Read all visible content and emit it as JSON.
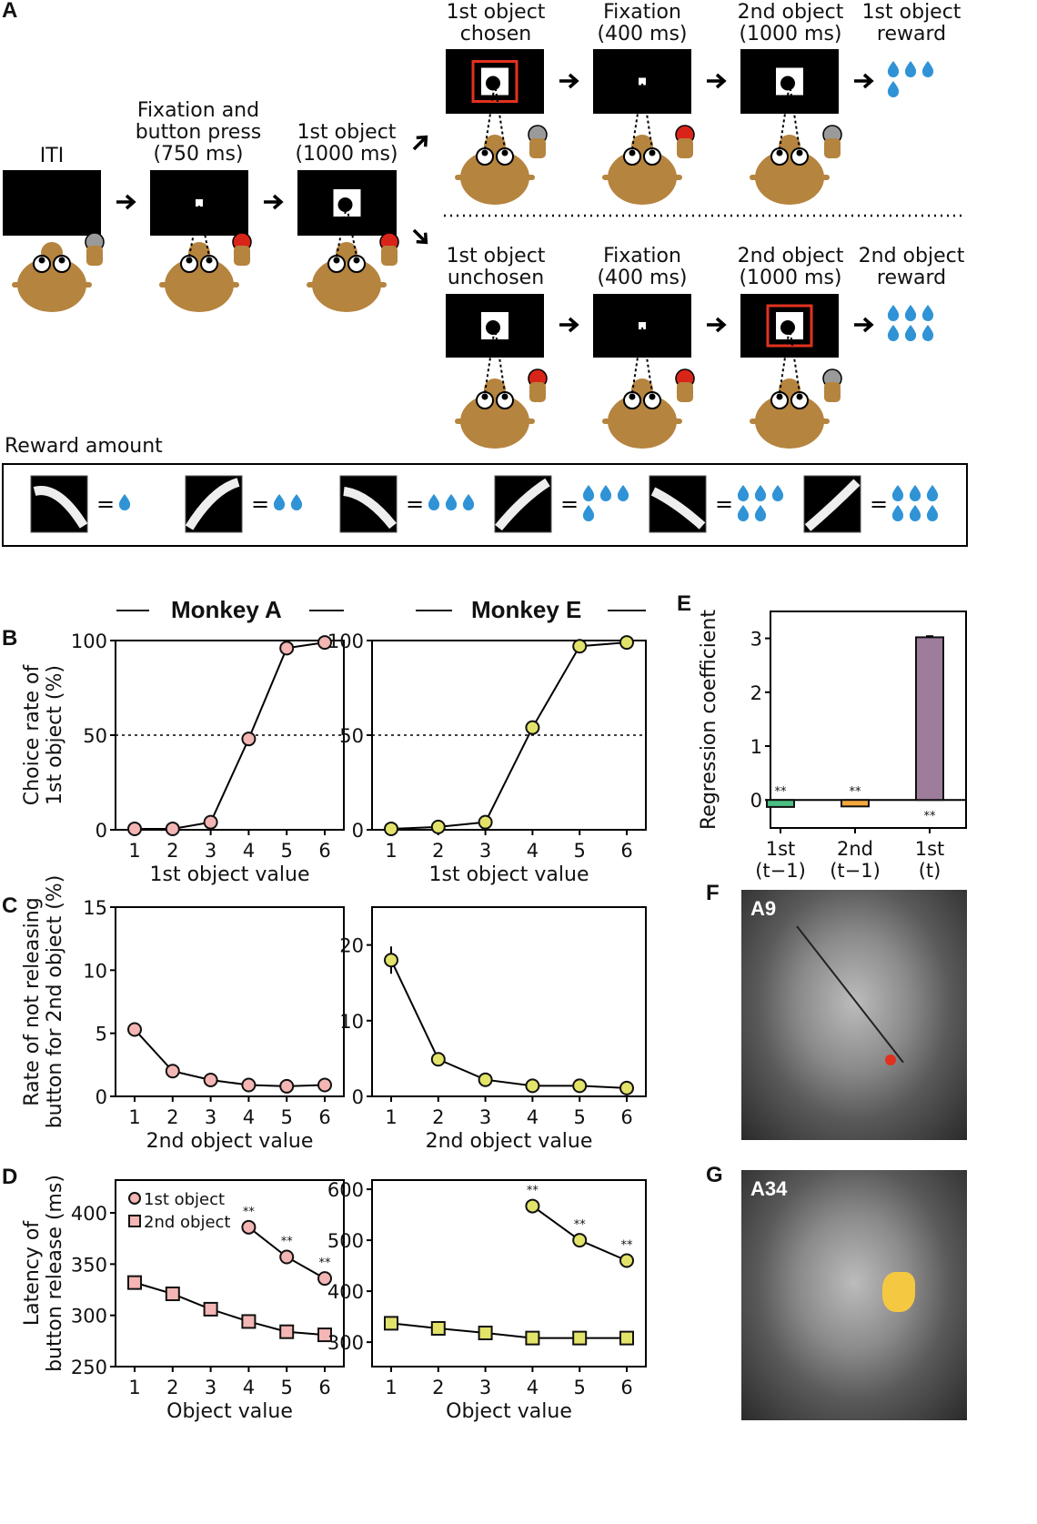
{
  "panel_labels": {
    "a": "A",
    "b": "B",
    "c": "C",
    "d": "D",
    "e": "E",
    "f": "F",
    "g": "G"
  },
  "panel_a": {
    "iti": "ITI",
    "fixation_press": [
      "Fixation and",
      "button press",
      "(750 ms)"
    ],
    "first_object": [
      "1st object",
      "(1000 ms)"
    ],
    "top_row": [
      [
        "1st object",
        "chosen"
      ],
      [
        "Fixation",
        "(400 ms)"
      ],
      [
        "2nd object",
        "(1000 ms)"
      ],
      [
        "1st object",
        "reward"
      ]
    ],
    "bottom_row": [
      [
        "1st object",
        "unchosen"
      ],
      [
        "Fixation",
        "(400 ms)"
      ],
      [
        "2nd object",
        "(1000 ms)"
      ],
      [
        "2nd object",
        "reward"
      ]
    ],
    "top_reward_drops": 4,
    "bottom_reward_drops": 6,
    "reward_title": "Reward amount",
    "reward_items": [
      {
        "drops": 1,
        "equals": "="
      },
      {
        "drops": 2,
        "equals": "="
      },
      {
        "drops": 3,
        "equals": "="
      },
      {
        "drops": 4,
        "equals": "="
      },
      {
        "drops": 5,
        "equals": "="
      },
      {
        "drops": 6,
        "equals": "="
      }
    ],
    "colors": {
      "monkey": "#b5843f",
      "drop": "#2f93d6",
      "highlight": "#e2321f",
      "button_pressed": "#d9241a",
      "button_idle": "#9a9a9a"
    }
  },
  "monkey_headers": [
    "Monkey A",
    "Monkey E"
  ],
  "brain": {
    "f_label": "A9",
    "g_label": "A34",
    "marker_color": "#e0301e",
    "region_color": "#f5c842"
  },
  "chart_data": [
    {
      "id": "B-monkeyA",
      "type": "line",
      "x": [
        1,
        2,
        3,
        4,
        5,
        6
      ],
      "xlabel": "1st object value",
      "ylabel": [
        "Choice rate of",
        "1st object (%)"
      ],
      "ylim": [
        0,
        100
      ],
      "yticks": [
        0,
        50,
        100
      ],
      "reference_line": 50,
      "series": [
        {
          "marker": "circle",
          "color": "#f4b6b4",
          "values": [
            0.5,
            0.5,
            4,
            48,
            96,
            99
          ]
        }
      ]
    },
    {
      "id": "B-monkeyE",
      "type": "line",
      "x": [
        1,
        2,
        3,
        4,
        5,
        6
      ],
      "xlabel": "1st object value",
      "ylim": [
        0,
        100
      ],
      "yticks": [
        0,
        50,
        100
      ],
      "reference_line": 50,
      "series": [
        {
          "marker": "circle",
          "color": "#e3e36a",
          "values": [
            0.5,
            1.5,
            4,
            54,
            97,
            99
          ]
        }
      ]
    },
    {
      "id": "C-monkeyA",
      "type": "line",
      "x": [
        1,
        2,
        3,
        4,
        5,
        6
      ],
      "xlabel": "2nd object value",
      "ylabel": [
        "Rate of not releasing",
        "button for 2nd object (%)"
      ],
      "ylim": [
        0,
        15
      ],
      "yticks": [
        0,
        5,
        10,
        15
      ],
      "series": [
        {
          "marker": "circle",
          "color": "#f4b6b4",
          "values": [
            5.3,
            2,
            1.3,
            0.9,
            0.8,
            0.9
          ]
        }
      ]
    },
    {
      "id": "C-monkeyE",
      "type": "line",
      "x": [
        1,
        2,
        3,
        4,
        5,
        6
      ],
      "xlabel": "2nd object value",
      "ylim": [
        0,
        25
      ],
      "yticks": [
        0,
        10,
        20
      ],
      "series": [
        {
          "marker": "circle",
          "color": "#e3e36a",
          "values": [
            18,
            4.9,
            2.2,
            1.4,
            1.4,
            1.1
          ],
          "errors": [
            1.8,
            0,
            0,
            0,
            0,
            0
          ]
        }
      ]
    },
    {
      "id": "D-monkeyA",
      "type": "line",
      "x": [
        1,
        2,
        3,
        4,
        5,
        6
      ],
      "xlabel": "Object value",
      "ylabel": [
        "Latency of",
        "button release (ms)"
      ],
      "ylim": [
        250,
        432
      ],
      "yticks": [
        250,
        300,
        350,
        400
      ],
      "legend": "top-left",
      "series": [
        {
          "name": "1st object",
          "marker": "circle",
          "color": "#f4b6b4",
          "x": [
            4,
            5,
            6
          ],
          "values": [
            386,
            357,
            336
          ],
          "significance": [
            "**",
            "**",
            "**"
          ]
        },
        {
          "name": "2nd object",
          "marker": "square",
          "color": "#f4b6b4",
          "values": [
            332,
            321,
            306,
            294,
            284,
            281
          ]
        }
      ]
    },
    {
      "id": "D-monkeyE",
      "type": "line",
      "x": [
        1,
        2,
        3,
        4,
        5,
        6
      ],
      "xlabel": "Object value",
      "ylim": [
        252,
        618
      ],
      "yticks": [
        300,
        400,
        500,
        600
      ],
      "series": [
        {
          "marker": "circle",
          "color": "#e3e36a",
          "x": [
            4,
            5,
            6
          ],
          "values": [
            567,
            500,
            460
          ],
          "significance": [
            "**",
            "**",
            "**"
          ]
        },
        {
          "marker": "square",
          "color": "#e3e36a",
          "values": [
            337,
            327,
            318,
            308,
            308,
            308
          ]
        }
      ]
    },
    {
      "id": "E",
      "type": "bar",
      "categories": [
        [
          "1st",
          "(t−1)"
        ],
        [
          "2nd",
          "(t−1)"
        ],
        [
          "1st",
          "(t)"
        ]
      ],
      "ylabel": "Regression coefficient",
      "ylim": [
        -0.52,
        3.5
      ],
      "yticks": [
        0,
        1,
        2,
        3
      ],
      "values": [
        -0.13,
        -0.12,
        3.02
      ],
      "colors": [
        "#4bbf83",
        "#f5a83c",
        "#9e7c9c"
      ],
      "significance": [
        "**",
        "**",
        "**"
      ]
    }
  ]
}
